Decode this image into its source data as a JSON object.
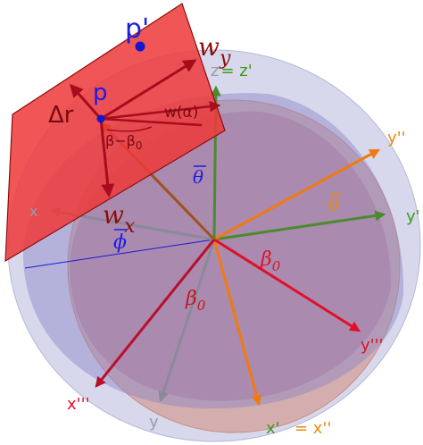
{
  "colors": {
    "sphere": "#c9cbe6",
    "sphere_edge": "#b4b8d8",
    "salmon_disk": "#d4a29c",
    "blue_disk": "#8a86c8",
    "plane": "#ee3a3a",
    "plane_edge": "#8b0e0e",
    "red": "#e0102a",
    "dark_red": "#b80f2c",
    "orange": "#f07a10",
    "green": "#4c8a2e",
    "gray": "#8a8a9a",
    "blue": "#1010e0",
    "label_red": "#c01818",
    "label_blue": "#1c1ce0",
    "label_orange": "#e88a10",
    "label_green": "#3c9a1c",
    "label_gray": "#9a9aa8",
    "dark_label_red": "#7a0a10"
  },
  "labels": {
    "p_prime": "p'",
    "p": "p",
    "w_y_base": "w",
    "w_y_sub": "y",
    "w_x_base": "w",
    "w_x_sub": "x",
    "delta_r": "Δr",
    "w_alpha": "w(α)",
    "beta_minus_beta0": "β−β",
    "beta_minus_beta0_sub": "0",
    "z_eq_zprime_z": "z",
    "z_eq_zprime_rest": "= z'",
    "theta_bar_blue": "θ",
    "theta_bar_orange": "θ",
    "phi_bar": "ϕ",
    "beta0_right": "β",
    "beta0_right_sub": "0",
    "beta0_left": "β",
    "beta0_left_sub": "0",
    "x": "x",
    "y": "y",
    "y_prime": "y'",
    "y_double_prime": "y''",
    "y_triple_prime": "y'''",
    "x_triple_prime": "x'''",
    "x_prime": "x'",
    "eq_x_double_prime": "= x''"
  }
}
